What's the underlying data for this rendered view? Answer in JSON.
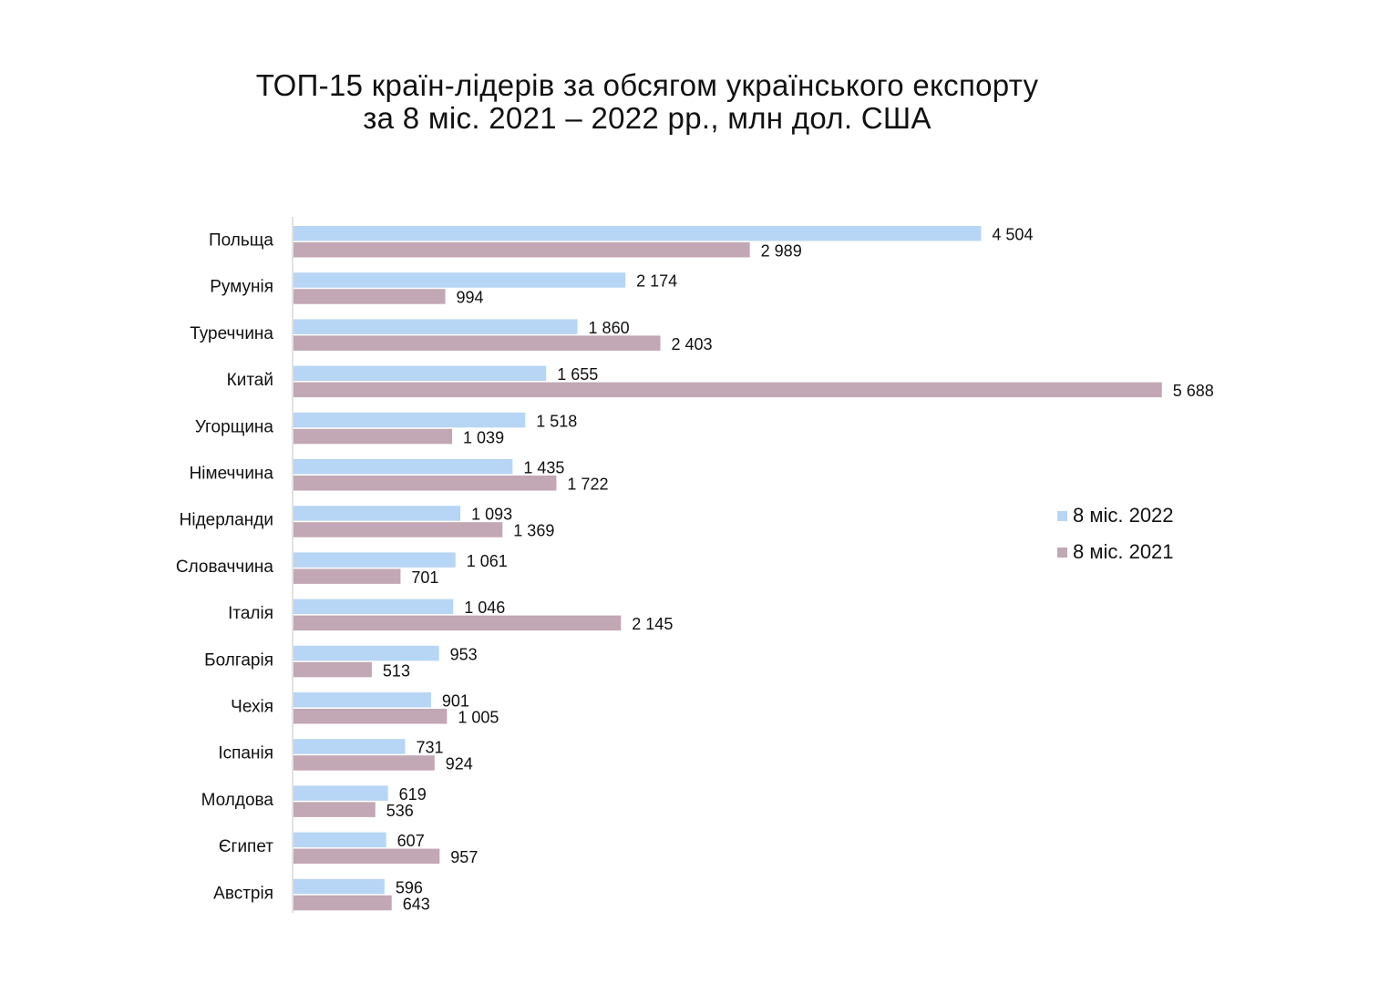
{
  "chart_data": {
    "type": "bar",
    "orientation": "horizontal",
    "title": "ТОП-15 країн-лідерів за обсягом українського експорту",
    "subtitle": "за 8 міс. 2021 – 2022 рр., млн дол. США",
    "categories": [
      "Польща",
      "Румунія",
      "Туреччина",
      "Китай",
      "Угорщина",
      "Німеччина",
      "Нідерланди",
      "Словаччина",
      "Італія",
      "Болгарія",
      "Чехія",
      "Іспанія",
      "Молдова",
      "Єгипет",
      "Австрія"
    ],
    "series": [
      {
        "name": "8 міс. 2022",
        "color": "#b7d5f5",
        "values": [
          4504,
          2174,
          1860,
          1655,
          1518,
          1435,
          1093,
          1061,
          1046,
          953,
          901,
          731,
          619,
          607,
          596
        ],
        "labels": [
          "4 504",
          "2 174",
          "1 860",
          "1 655",
          "1 518",
          "1 435",
          "1 093",
          "1 061",
          "1 046",
          "953",
          "901",
          "731",
          "619",
          "607",
          "596"
        ]
      },
      {
        "name": "8 міс. 2021",
        "color": "#c2a7b4",
        "values": [
          2989,
          994,
          2403,
          5688,
          1039,
          1722,
          1369,
          701,
          2145,
          513,
          1005,
          924,
          536,
          957,
          643
        ],
        "labels": [
          "2 989",
          "994",
          "2 403",
          "5 688",
          "1 039",
          "1 722",
          "1 369",
          "701",
          "2 145",
          "513",
          "1 005",
          "924",
          "536",
          "957",
          "643"
        ]
      }
    ],
    "xlim": [
      0,
      6000
    ],
    "grid": false,
    "legend_position": "right"
  }
}
